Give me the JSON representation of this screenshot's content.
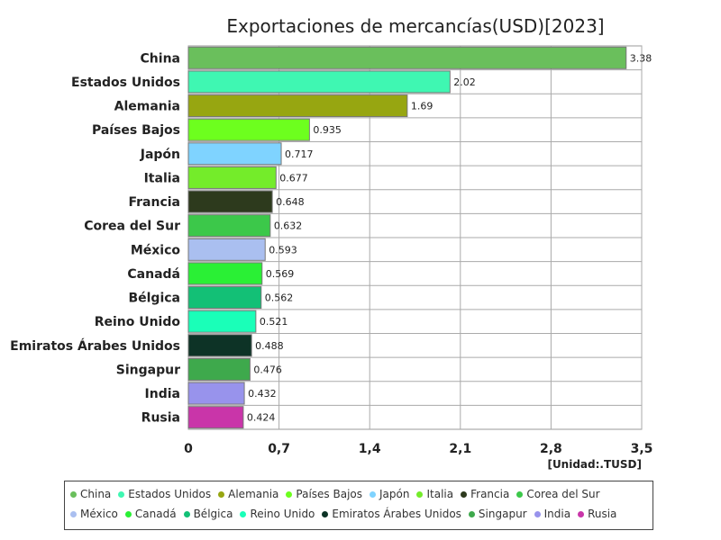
{
  "chart_data": {
    "type": "bar",
    "orientation": "horizontal",
    "title": "Exportaciones de mercancías(USD)[2023]",
    "unit_label": "[Unidad:.TUSD]",
    "xlim": [
      0,
      3.5
    ],
    "x_ticks": [
      0,
      0.7,
      1.4,
      2.1,
      2.8,
      3.5
    ],
    "x_tick_labels": [
      "0",
      "0,7",
      "1,4",
      "2,1",
      "2,8",
      "3,5"
    ],
    "grid": true,
    "legend_position": "bottom",
    "categories": [
      "China",
      "Estados Unidos",
      "Alemania",
      "Países Bajos",
      "Japón",
      "Italia",
      "Francia",
      "Corea del Sur",
      "México",
      "Canadá",
      "Bélgica",
      "Reino Unido",
      "Emiratos Árabes Unidos",
      "Singapur",
      "India",
      "Rusia"
    ],
    "values": [
      3.38,
      2.02,
      1.69,
      0.935,
      0.717,
      0.677,
      0.648,
      0.632,
      0.593,
      0.569,
      0.562,
      0.521,
      0.488,
      0.476,
      0.432,
      0.424
    ],
    "value_labels": [
      "3.38",
      "2.02",
      "1.69",
      "0.935",
      "0.717",
      "0.677",
      "0.648",
      "0.632",
      "0.593",
      "0.569",
      "0.562",
      "0.521",
      "0.488",
      "0.476",
      "0.432",
      "0.424"
    ],
    "colors": [
      "#6abf5c",
      "#3ff7b2",
      "#97a611",
      "#6dff1e",
      "#7fd3ff",
      "#74ec2a",
      "#2d3a1d",
      "#3cc84a",
      "#aabff0",
      "#2af035",
      "#13c076",
      "#1affb8",
      "#0d3326",
      "#3ea94c",
      "#9893ec",
      "#c935a9"
    ]
  }
}
